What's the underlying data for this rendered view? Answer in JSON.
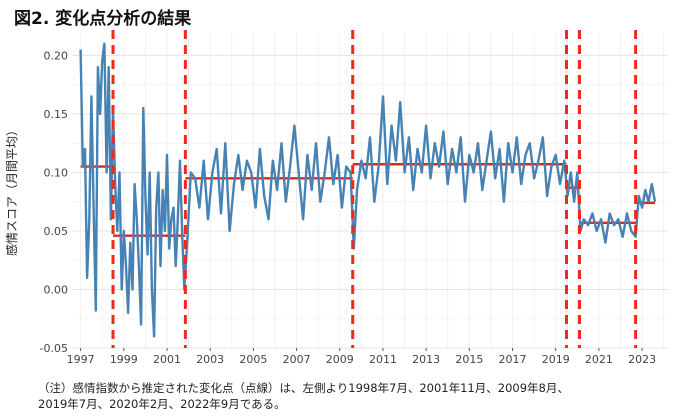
{
  "title": "図2. 変化点分析の結果",
  "note": "（注）感情指数から推定された変化点（点線）は、左側より1998年7月、2001年11月、2009年8月、\n2019年7月、2020年2月、2022年9月である。",
  "chart_data": {
    "type": "line",
    "ylabel": "感情スコア（月間平均）",
    "xlabel": "",
    "xlim": [
      1996.6,
      2024.2
    ],
    "ylim": [
      -0.05,
      0.22
    ],
    "x_ticks": [
      1997,
      1999,
      2001,
      2003,
      2005,
      2007,
      2009,
      2011,
      2013,
      2015,
      2017,
      2019,
      2021,
      2023
    ],
    "y_ticks": [
      -0.05,
      0.0,
      0.05,
      0.1,
      0.15,
      0.2
    ],
    "y_tick_labels": [
      "-0.05",
      "0.00",
      "0.05",
      "0.10",
      "0.15",
      "0.20"
    ],
    "grid": true,
    "series_color": "#4682b4",
    "segment_color": "#e0261b",
    "changepoint_color": "#ee2a1b",
    "series": [
      {
        "type": "line",
        "x": [
          1997.0,
          1997.1,
          1997.2,
          1997.3,
          1997.4,
          1997.5,
          1997.6,
          1997.7,
          1997.8,
          1997.9,
          1998.0,
          1998.1,
          1998.2,
          1998.3,
          1998.4,
          1998.5,
          1998.6,
          1998.7,
          1998.8,
          1998.9,
          1999.0,
          1999.1,
          1999.2,
          1999.3,
          1999.4,
          1999.5,
          1999.6,
          1999.7,
          1999.8,
          1999.9,
          2000.0,
          2000.1,
          2000.2,
          2000.3,
          2000.4,
          2000.5,
          2000.6,
          2000.7,
          2000.8,
          2000.9,
          2001.0,
          2001.1,
          2001.2,
          2001.3,
          2001.4,
          2001.5,
          2001.6,
          2001.7,
          2001.8,
          2001.95,
          2002.1,
          2002.3,
          2002.5,
          2002.7,
          2002.9,
          2003.1,
          2003.3,
          2003.5,
          2003.7,
          2003.9,
          2004.1,
          2004.3,
          2004.5,
          2004.7,
          2004.9,
          2005.1,
          2005.3,
          2005.5,
          2005.7,
          2005.9,
          2006.1,
          2006.3,
          2006.5,
          2006.7,
          2006.9,
          2007.1,
          2007.3,
          2007.5,
          2007.7,
          2007.9,
          2008.1,
          2008.3,
          2008.5,
          2008.7,
          2008.9,
          2009.1,
          2009.3,
          2009.5,
          2009.65,
          2009.8,
          2010.0,
          2010.2,
          2010.4,
          2010.6,
          2010.8,
          2011.0,
          2011.2,
          2011.4,
          2011.6,
          2011.8,
          2012.0,
          2012.2,
          2012.4,
          2012.6,
          2012.8,
          2013.0,
          2013.2,
          2013.4,
          2013.6,
          2013.8,
          2014.0,
          2014.2,
          2014.4,
          2014.6,
          2014.8,
          2015.0,
          2015.2,
          2015.4,
          2015.6,
          2015.8,
          2016.0,
          2016.2,
          2016.4,
          2016.6,
          2016.8,
          2017.0,
          2017.2,
          2017.4,
          2017.6,
          2017.8,
          2018.0,
          2018.2,
          2018.4,
          2018.6,
          2018.8,
          2019.0,
          2019.2,
          2019.4,
          2019.55,
          2019.7,
          2019.85,
          2020.0,
          2020.15,
          2020.3,
          2020.5,
          2020.7,
          2020.9,
          2021.1,
          2021.3,
          2021.5,
          2021.7,
          2021.9,
          2022.1,
          2022.3,
          2022.5,
          2022.7,
          2022.85,
          2023.0,
          2023.15,
          2023.3,
          2023.45,
          2023.6
        ],
        "y": [
          0.205,
          0.105,
          0.12,
          0.01,
          0.06,
          0.165,
          0.07,
          -0.018,
          0.19,
          0.15,
          0.195,
          0.21,
          0.1,
          0.19,
          0.06,
          0.155,
          0.09,
          0.05,
          0.1,
          0.0,
          0.05,
          0.02,
          -0.02,
          0.04,
          0.0,
          0.09,
          0.06,
          0.02,
          -0.03,
          0.155,
          0.08,
          0.03,
          0.1,
          0.0,
          -0.04,
          0.07,
          0.1,
          0.02,
          0.085,
          0.05,
          0.115,
          0.035,
          0.06,
          0.07,
          0.02,
          0.06,
          0.11,
          0.05,
          0.0,
          0.045,
          0.1,
          0.095,
          0.07,
          0.11,
          0.06,
          0.1,
          0.12,
          0.065,
          0.125,
          0.05,
          0.09,
          0.115,
          0.085,
          0.11,
          0.1,
          0.07,
          0.12,
          0.08,
          0.06,
          0.11,
          0.085,
          0.125,
          0.075,
          0.105,
          0.14,
          0.1,
          0.06,
          0.115,
          0.085,
          0.125,
          0.075,
          0.1,
          0.13,
          0.09,
          0.115,
          0.07,
          0.105,
          0.1,
          0.035,
          0.085,
          0.11,
          0.095,
          0.13,
          0.075,
          0.105,
          0.165,
          0.09,
          0.14,
          0.11,
          0.16,
          0.1,
          0.13,
          0.085,
          0.12,
          0.1,
          0.14,
          0.095,
          0.125,
          0.105,
          0.135,
          0.09,
          0.12,
          0.1,
          0.13,
          0.075,
          0.115,
          0.1,
          0.125,
          0.085,
          0.11,
          0.135,
          0.095,
          0.12,
          0.075,
          0.125,
          0.1,
          0.13,
          0.09,
          0.115,
          0.125,
          0.095,
          0.11,
          0.13,
          0.08,
          0.105,
          0.115,
          0.09,
          0.11,
          0.08,
          0.1,
          0.075,
          0.1,
          0.05,
          0.06,
          0.055,
          0.065,
          0.05,
          0.06,
          0.04,
          0.065,
          0.055,
          0.06,
          0.045,
          0.065,
          0.05,
          0.045,
          0.08,
          0.07,
          0.085,
          0.075,
          0.09,
          0.075
        ]
      }
    ],
    "segments": [
      {
        "x0": 1997.0,
        "x1": 1998.5,
        "y": 0.105
      },
      {
        "x0": 1998.5,
        "x1": 2001.85,
        "y": 0.046
      },
      {
        "x0": 2001.85,
        "x1": 2009.6,
        "y": 0.095
      },
      {
        "x0": 2009.6,
        "x1": 2019.5,
        "y": 0.107
      },
      {
        "x0": 2019.5,
        "x1": 2020.1,
        "y": 0.087
      },
      {
        "x0": 2020.1,
        "x1": 2022.7,
        "y": 0.057
      },
      {
        "x0": 2022.7,
        "x1": 2023.6,
        "y": 0.074
      }
    ],
    "changepoints": [
      1998.5,
      2001.85,
      2009.6,
      2019.5,
      2020.1,
      2022.7
    ]
  }
}
